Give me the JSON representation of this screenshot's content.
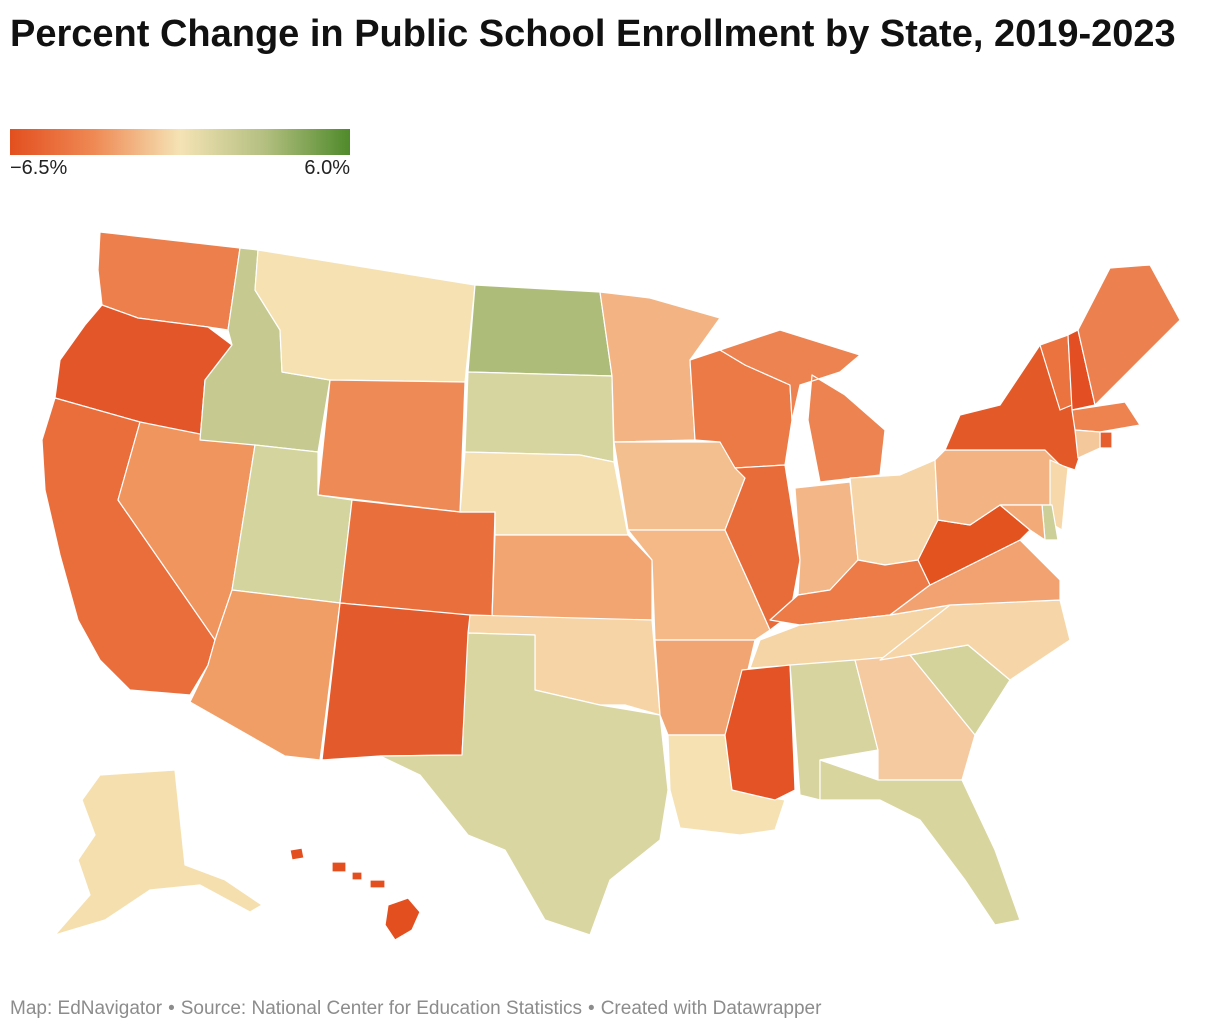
{
  "title": "Percent Change in Public School Enrollment by State, 2019-2023",
  "legend": {
    "min_label": "−6.5%",
    "max_label": "6.0%",
    "min_value": -6.5,
    "max_value": 6.0,
    "colors": [
      "#e34f1f",
      "#ef8a55",
      "#f5e3b5",
      "#b3bf80",
      "#4f8a2a"
    ]
  },
  "map": {
    "type": "choropleth",
    "region": "United States",
    "fills": {
      "WA": "#ec7f4c",
      "OR": "#e3562a",
      "CA": "#e96e3c",
      "NV": "#f0955e",
      "ID": "#c6ca90",
      "MT": "#f5e1b2",
      "WY": "#ee8a55",
      "UT": "#d4d49e",
      "AZ": "#f19d66",
      "NM": "#e35a2c",
      "CO": "#e9703c",
      "ND": "#adbd79",
      "SD": "#d6d49f",
      "NE": "#f5e0b1",
      "KS": "#f2a571",
      "OK": "#f6d4a6",
      "TX": "#dad6a2",
      "MN": "#f3b383",
      "IA": "#f4bf8f",
      "MO": "#f4b987",
      "AR": "#f1a572",
      "LA": "#f5e1b2",
      "WI": "#eb7a47",
      "IL": "#e86c3a",
      "MI": "#ed8350",
      "IN": "#f3b686",
      "OH": "#f6d6a8",
      "KY": "#ec7b47",
      "TN": "#f5d4a6",
      "MS": "#e35326",
      "AL": "#d8d4a0",
      "GA": "#f5caa0",
      "FL": "#d9d59f",
      "SC": "#d4d39c",
      "NC": "#f6d6a8",
      "VA": "#f1a270",
      "WV": "#e3531f",
      "PA": "#f3b383",
      "NY": "#e35a28",
      "VT": "#ea7340",
      "NH": "#e34f22",
      "ME": "#ec804e",
      "MA": "#ee8350",
      "RI": "#e65e2e",
      "CT": "#f5c89c",
      "NJ": "#f6d8aa",
      "DE": "#ccd098",
      "MD": "#f2aa78",
      "AK": "#f5dfae",
      "HI": "#e34f1f"
    }
  },
  "footer": {
    "map_credit": "Map: EdNavigator",
    "separator": "•",
    "source": "Source: National Center for Education Statistics",
    "tool": "Created with Datawrapper"
  }
}
